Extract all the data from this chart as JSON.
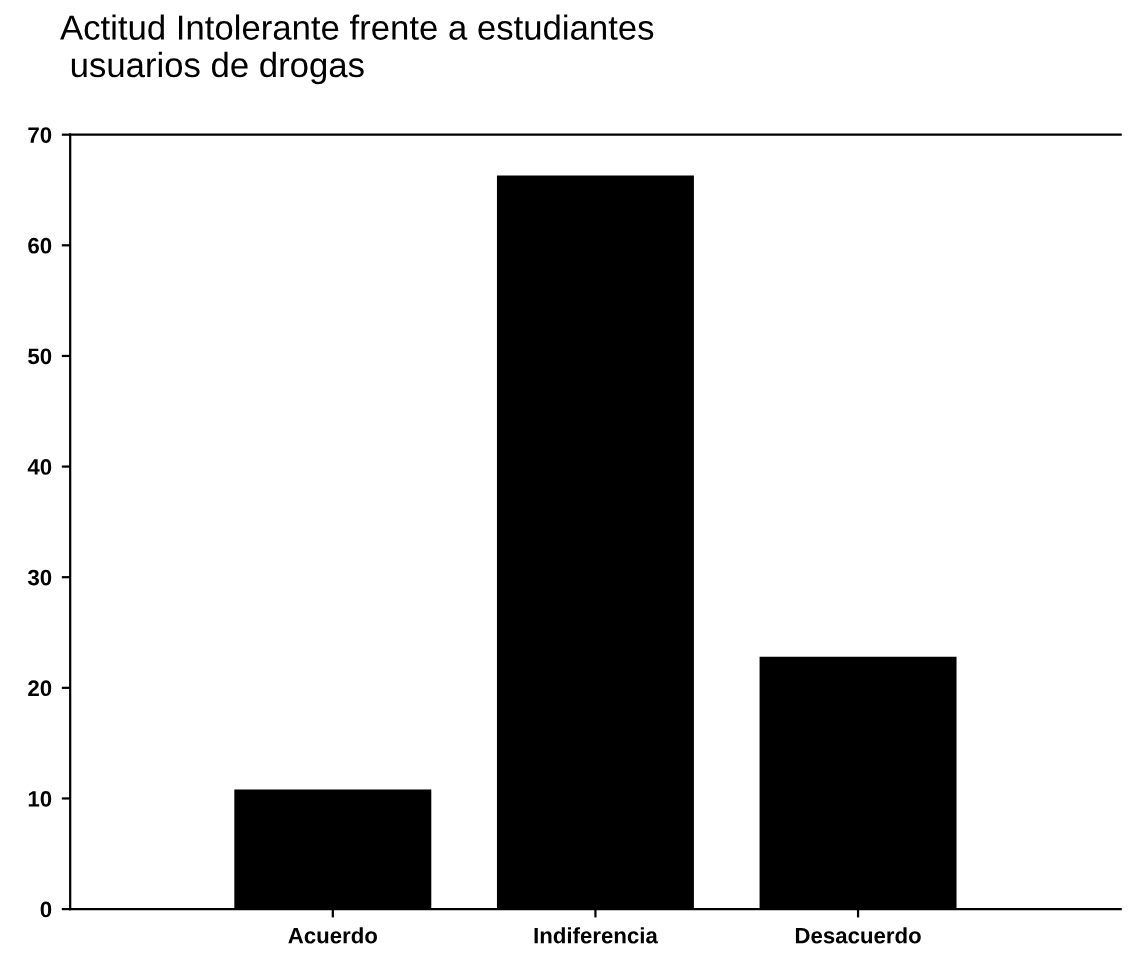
{
  "chart_data": {
    "type": "bar",
    "title": "Actitud Intolerante frente a estudiantes\n usuarios de drogas",
    "categories": [
      "Acuerdo",
      "Indiferencia",
      "Desacuerdo"
    ],
    "values": [
      10.8,
      66.3,
      22.8
    ],
    "color": "#000000",
    "ylim": [
      0,
      70
    ],
    "yticks": [
      0,
      10,
      20,
      30,
      40,
      50,
      60,
      70
    ],
    "grid": false
  }
}
